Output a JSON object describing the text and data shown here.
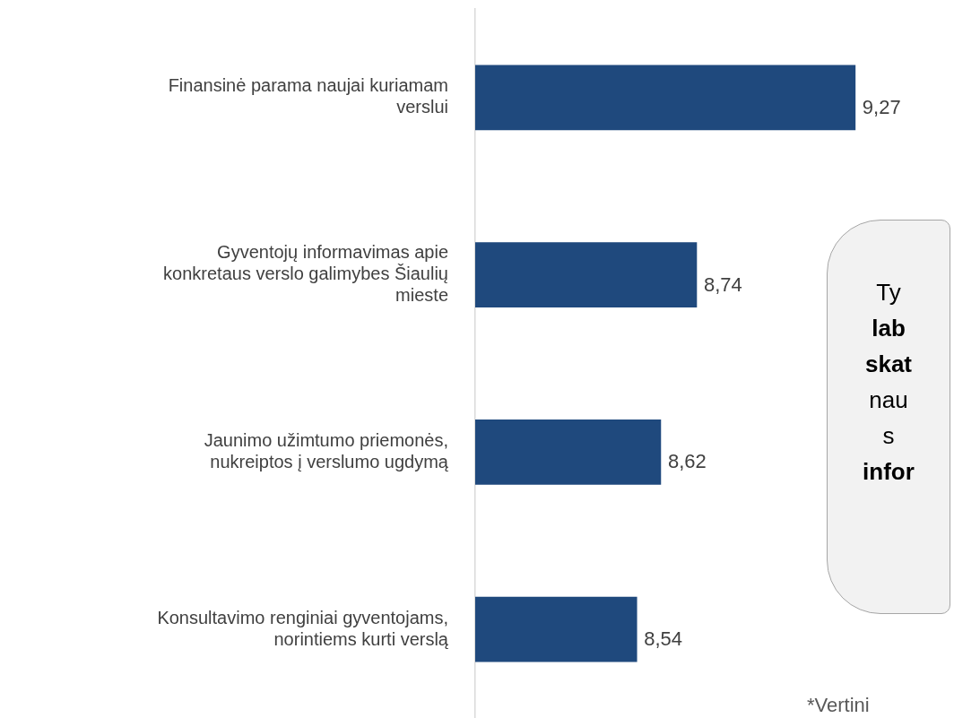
{
  "chart_data": {
    "type": "bar",
    "orientation": "horizontal",
    "categories": [
      "Finansinė parama naujai kuriamam verslui",
      "Gyventojų informavimas apie konkretaus verslo galimybes Šiaulių mieste",
      "Jaunimo užimtumo priemonės, nukreiptos į verslumo ugdymą",
      "Konsultavimo renginiai gyventojams, norintiems kurti verslą"
    ],
    "values": [
      9.27,
      8.74,
      8.62,
      8.54
    ],
    "value_labels": [
      "9,27",
      "8,74",
      "8,62",
      "8,54"
    ],
    "color": "#1f497d",
    "xlim": [
      8,
      9.6
    ],
    "tick_labels": "y",
    "grid": false,
    "legend": false,
    "annotations": [
      "Ty",
      "lab",
      "skat",
      "nau",
      "s",
      "infor",
      "*Vertini"
    ]
  }
}
